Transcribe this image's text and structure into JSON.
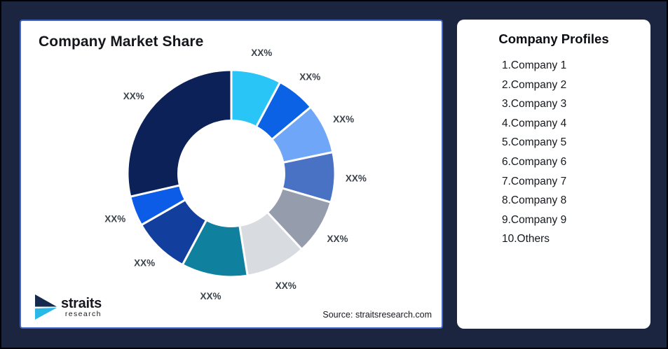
{
  "left_panel": {
    "title": "Company Market Share",
    "source": "Source: straitsresearch.com"
  },
  "logo": {
    "brand": "straits",
    "sub": "research",
    "navy": "#152A4E",
    "cyan": "#29B9E8"
  },
  "right_panel": {
    "title": "Company Profiles",
    "items": [
      "1.Company 1",
      "2.Company 2",
      "3.Company 3",
      "4.Company 4",
      "5.Company 5",
      "6.Company 6",
      "7.Company 7",
      "8.Company 8",
      "9.Company 9",
      "10.Others"
    ]
  },
  "chart_data": {
    "type": "pie",
    "variant": "donut",
    "title": "Company Market Share",
    "start_angle_deg": 0,
    "clockwise": true,
    "inner_radius_ratio": 0.51,
    "legend_position": "none",
    "data_label_text": "XX%",
    "note": "All slice labels display the placeholder XX%; value_pct_est are estimated from arc angles.",
    "series": [
      {
        "name": "Company 1",
        "label": "XX%",
        "value_pct_est": 7.8,
        "color": "#29C5F6"
      },
      {
        "name": "Company 2",
        "label": "XX%",
        "value_pct_est": 6.1,
        "color": "#0B62E4"
      },
      {
        "name": "Company 3",
        "label": "XX%",
        "value_pct_est": 7.8,
        "color": "#70A6F7"
      },
      {
        "name": "Company 4",
        "label": "XX%",
        "value_pct_est": 7.8,
        "color": "#4A72C4"
      },
      {
        "name": "Company 5",
        "label": "XX%",
        "value_pct_est": 8.6,
        "color": "#959CAB"
      },
      {
        "name": "Company 6",
        "label": "XX%",
        "value_pct_est": 9.4,
        "color": "#D8DBE0"
      },
      {
        "name": "Company 7",
        "label": "XX%",
        "value_pct_est": 10.3,
        "color": "#0F819E"
      },
      {
        "name": "Company 8",
        "label": "XX%",
        "value_pct_est": 8.9,
        "color": "#123E9E"
      },
      {
        "name": "Company 9",
        "label": "XX%",
        "value_pct_est": 4.7,
        "color": "#0C5CE8"
      },
      {
        "name": "Others",
        "label": "XX%",
        "value_pct_est": 28.6,
        "color": "#0B2158"
      }
    ]
  }
}
